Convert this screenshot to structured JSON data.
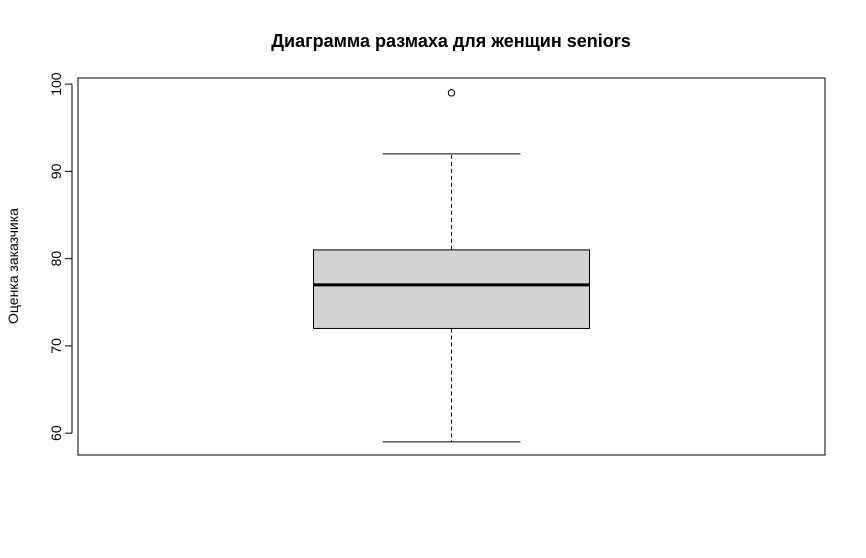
{
  "chart_data": {
    "type": "boxplot",
    "title": "Диаграмма размаха для женщин seniors",
    "xlabel": "",
    "ylabel": "Оценка заказчика",
    "ylim": [
      57.5,
      100.7
    ],
    "yticks": [
      60,
      70,
      80,
      90,
      100
    ],
    "ytick_labels": [
      "60",
      "70",
      "80",
      "90",
      "100"
    ],
    "grid": false,
    "legend": "none",
    "boxes": [
      {
        "whisker_low": 59,
        "q1": 72,
        "median": 77,
        "q3": 81,
        "whisker_high": 92,
        "outliers": [
          99
        ]
      }
    ],
    "colors": {
      "box_fill": "#d3d3d3",
      "stroke": "#000000",
      "background": "#ffffff"
    }
  }
}
